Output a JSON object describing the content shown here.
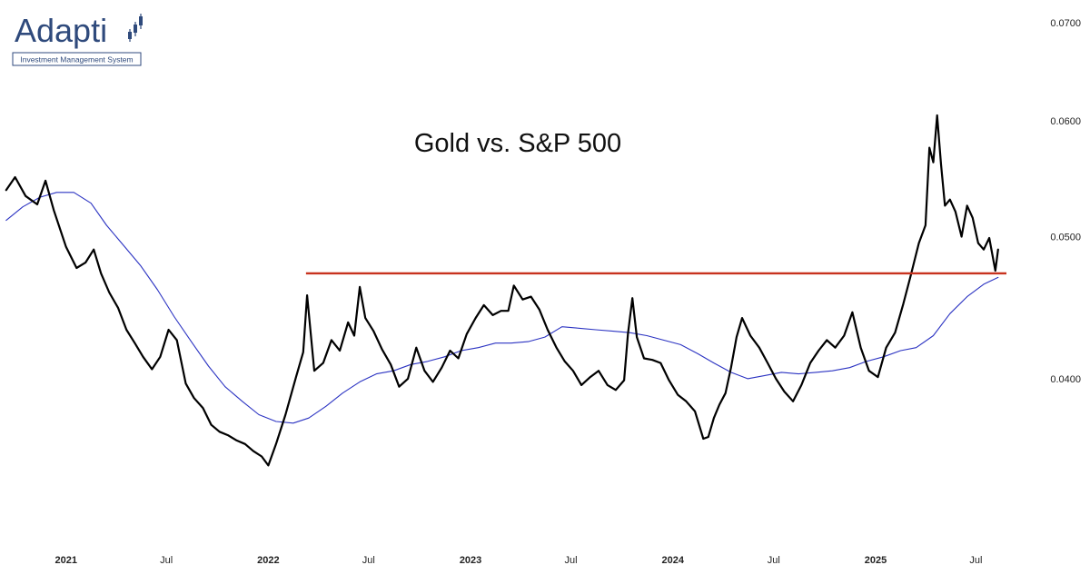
{
  "logo": {
    "name": "Adapti",
    "tagline": "Investment Management System",
    "color": "#2f4a7c"
  },
  "chart_data": {
    "type": "line",
    "title": "Gold vs. S&P 500",
    "xlabel": "",
    "ylabel": "",
    "x_ticks": [
      "2021",
      "Jul",
      "2022",
      "Jul",
      "2023",
      "Jul",
      "2024",
      "Jul",
      "2025",
      "Jul"
    ],
    "x_tick_dates": [
      "2021-01-01",
      "2021-07-01",
      "2022-01-01",
      "2022-07-01",
      "2023-01-01",
      "2023-07-01",
      "2024-01-01",
      "2024-07-01",
      "2025-01-01",
      "2025-07-01"
    ],
    "y_ticks": [
      "0.0700",
      "0.0600",
      "0.0500",
      "0.0400"
    ],
    "y_tick_values": [
      0.07,
      0.06,
      0.05,
      0.04
    ],
    "y_axis_position": "right",
    "grid": false,
    "xlim": [
      "2020-09-12",
      "2025-08-25"
    ],
    "ylim": [
      0.0308,
      0.0717
    ],
    "y_scale": "log",
    "series": [
      {
        "color": "#000000",
        "points": [
          [
            "2020-09-15",
            0.0538
          ],
          [
            "2020-10-01",
            0.0549
          ],
          [
            "2020-10-20",
            0.0533
          ],
          [
            "2020-11-10",
            0.0526
          ],
          [
            "2020-11-25",
            0.0546
          ],
          [
            "2020-12-10",
            0.0521
          ],
          [
            "2021-01-01",
            0.0492
          ],
          [
            "2021-01-20",
            0.0476
          ],
          [
            "2021-02-05",
            0.048
          ],
          [
            "2021-02-20",
            0.049
          ],
          [
            "2021-03-05",
            0.0472
          ],
          [
            "2021-03-20",
            0.0458
          ],
          [
            "2021-04-05",
            0.0447
          ],
          [
            "2021-04-20",
            0.0432
          ],
          [
            "2021-05-05",
            0.0423
          ],
          [
            "2021-05-20",
            0.0414
          ],
          [
            "2021-06-05",
            0.0406
          ],
          [
            "2021-06-20",
            0.0414
          ],
          [
            "2021-07-05",
            0.0432
          ],
          [
            "2021-07-20",
            0.0425
          ],
          [
            "2021-08-05",
            0.0397
          ],
          [
            "2021-08-20",
            0.0388
          ],
          [
            "2021-09-05",
            0.0382
          ],
          [
            "2021-09-20",
            0.0372
          ],
          [
            "2021-10-05",
            0.0368
          ],
          [
            "2021-10-20",
            0.0366
          ],
          [
            "2021-11-05",
            0.0363
          ],
          [
            "2021-11-20",
            0.0361
          ],
          [
            "2021-12-05",
            0.0357
          ],
          [
            "2021-12-20",
            0.0354
          ],
          [
            "2022-01-01",
            0.0349
          ],
          [
            "2022-01-15",
            0.0361
          ],
          [
            "2022-02-01",
            0.0378
          ],
          [
            "2022-02-20",
            0.0401
          ],
          [
            "2022-03-05",
            0.0417
          ],
          [
            "2022-03-12",
            0.0456
          ],
          [
            "2022-03-25",
            0.0405
          ],
          [
            "2022-04-10",
            0.041
          ],
          [
            "2022-04-25",
            0.0425
          ],
          [
            "2022-05-10",
            0.0418
          ],
          [
            "2022-05-25",
            0.0437
          ],
          [
            "2022-06-05",
            0.0428
          ],
          [
            "2022-06-15",
            0.0462
          ],
          [
            "2022-06-25",
            0.044
          ],
          [
            "2022-07-10",
            0.0431
          ],
          [
            "2022-07-25",
            0.0419
          ],
          [
            "2022-08-10",
            0.0409
          ],
          [
            "2022-08-25",
            0.0395
          ],
          [
            "2022-09-10",
            0.04
          ],
          [
            "2022-09-25",
            0.042
          ],
          [
            "2022-10-10",
            0.0405
          ],
          [
            "2022-10-25",
            0.0398
          ],
          [
            "2022-11-10",
            0.0407
          ],
          [
            "2022-11-25",
            0.0418
          ],
          [
            "2022-12-10",
            0.0413
          ],
          [
            "2022-12-25",
            0.0429
          ],
          [
            "2023-01-10",
            0.044
          ],
          [
            "2023-01-25",
            0.0449
          ],
          [
            "2023-02-10",
            0.0442
          ],
          [
            "2023-02-25",
            0.0445
          ],
          [
            "2023-03-10",
            0.0445
          ],
          [
            "2023-03-20",
            0.0463
          ],
          [
            "2023-04-05",
            0.0453
          ],
          [
            "2023-04-20",
            0.0455
          ],
          [
            "2023-05-05",
            0.0446
          ],
          [
            "2023-05-20",
            0.0432
          ],
          [
            "2023-06-05",
            0.042
          ],
          [
            "2023-06-20",
            0.0411
          ],
          [
            "2023-07-05",
            0.0405
          ],
          [
            "2023-07-20",
            0.0396
          ],
          [
            "2023-08-05",
            0.0401
          ],
          [
            "2023-08-20",
            0.0405
          ],
          [
            "2023-09-05",
            0.0396
          ],
          [
            "2023-09-20",
            0.0393
          ],
          [
            "2023-10-05",
            0.0399
          ],
          [
            "2023-10-12",
            0.0429
          ],
          [
            "2023-10-20",
            0.0454
          ],
          [
            "2023-10-28",
            0.0427
          ],
          [
            "2023-11-10",
            0.0413
          ],
          [
            "2023-11-25",
            0.0412
          ],
          [
            "2023-12-10",
            0.041
          ],
          [
            "2023-12-25",
            0.0399
          ],
          [
            "2024-01-10",
            0.039
          ],
          [
            "2024-01-25",
            0.0386
          ],
          [
            "2024-02-10",
            0.038
          ],
          [
            "2024-02-25",
            0.0364
          ],
          [
            "2024-03-05",
            0.0365
          ],
          [
            "2024-03-15",
            0.0376
          ],
          [
            "2024-03-25",
            0.0384
          ],
          [
            "2024-04-05",
            0.0391
          ],
          [
            "2024-04-15",
            0.0407
          ],
          [
            "2024-04-25",
            0.0427
          ],
          [
            "2024-05-05",
            0.044
          ],
          [
            "2024-05-20",
            0.0428
          ],
          [
            "2024-06-05",
            0.042
          ],
          [
            "2024-06-20",
            0.041
          ],
          [
            "2024-07-05",
            0.04
          ],
          [
            "2024-07-20",
            0.0392
          ],
          [
            "2024-08-05",
            0.0386
          ],
          [
            "2024-08-20",
            0.0396
          ],
          [
            "2024-09-05",
            0.041
          ],
          [
            "2024-09-20",
            0.0418
          ],
          [
            "2024-10-05",
            0.0425
          ],
          [
            "2024-10-20",
            0.042
          ],
          [
            "2024-11-05",
            0.0428
          ],
          [
            "2024-11-20",
            0.0444
          ],
          [
            "2024-12-05",
            0.042
          ],
          [
            "2024-12-20",
            0.0405
          ],
          [
            "2025-01-05",
            0.0401
          ],
          [
            "2025-01-20",
            0.042
          ],
          [
            "2025-02-05",
            0.043
          ],
          [
            "2025-02-20",
            0.045
          ],
          [
            "2025-03-05",
            0.047
          ],
          [
            "2025-03-20",
            0.0495
          ],
          [
            "2025-04-01",
            0.0509
          ],
          [
            "2025-04-08",
            0.0575
          ],
          [
            "2025-04-15",
            0.0562
          ],
          [
            "2025-04-22",
            0.0605
          ],
          [
            "2025-04-29",
            0.056
          ],
          [
            "2025-05-06",
            0.0525
          ],
          [
            "2025-05-15",
            0.053
          ],
          [
            "2025-05-25",
            0.052
          ],
          [
            "2025-06-05",
            0.05
          ],
          [
            "2025-06-15",
            0.0525
          ],
          [
            "2025-06-25",
            0.0515
          ],
          [
            "2025-07-05",
            0.0495
          ],
          [
            "2025-07-15",
            0.049
          ],
          [
            "2025-07-25",
            0.0499
          ],
          [
            "2025-08-05",
            0.0474
          ],
          [
            "2025-08-10",
            0.049
          ]
        ]
      },
      {
        "color": "#2b33c2",
        "points": [
          [
            "2020-09-15",
            0.0513
          ],
          [
            "2020-10-15",
            0.0524
          ],
          [
            "2020-11-15",
            0.0532
          ],
          [
            "2020-12-15",
            0.0536
          ],
          [
            "2021-01-15",
            0.0536
          ],
          [
            "2021-02-15",
            0.0527
          ],
          [
            "2021-03-15",
            0.0509
          ],
          [
            "2021-04-15",
            0.0493
          ],
          [
            "2021-05-15",
            0.0478
          ],
          [
            "2021-06-15",
            0.046
          ],
          [
            "2021-07-15",
            0.0441
          ],
          [
            "2021-08-15",
            0.0424
          ],
          [
            "2021-09-15",
            0.0408
          ],
          [
            "2021-10-15",
            0.0395
          ],
          [
            "2021-11-15",
            0.0386
          ],
          [
            "2021-12-15",
            0.0378
          ],
          [
            "2022-01-15",
            0.0374
          ],
          [
            "2022-02-15",
            0.0373
          ],
          [
            "2022-03-15",
            0.0376
          ],
          [
            "2022-04-15",
            0.0383
          ],
          [
            "2022-05-15",
            0.0391
          ],
          [
            "2022-06-15",
            0.0398
          ],
          [
            "2022-07-15",
            0.0403
          ],
          [
            "2022-08-15",
            0.0405
          ],
          [
            "2022-09-15",
            0.0409
          ],
          [
            "2022-10-15",
            0.0411
          ],
          [
            "2022-11-15",
            0.0414
          ],
          [
            "2022-12-15",
            0.0418
          ],
          [
            "2023-01-15",
            0.042
          ],
          [
            "2023-02-15",
            0.0423
          ],
          [
            "2023-03-15",
            0.0423
          ],
          [
            "2023-04-15",
            0.0424
          ],
          [
            "2023-05-15",
            0.0427
          ],
          [
            "2023-06-15",
            0.0434
          ],
          [
            "2023-07-15",
            0.0433
          ],
          [
            "2023-08-15",
            0.0432
          ],
          [
            "2023-09-15",
            0.0431
          ],
          [
            "2023-10-15",
            0.043
          ],
          [
            "2023-11-15",
            0.0428
          ],
          [
            "2023-12-15",
            0.0425
          ],
          [
            "2024-01-15",
            0.0422
          ],
          [
            "2024-02-15",
            0.0416
          ],
          [
            "2024-03-15",
            0.041
          ],
          [
            "2024-04-15",
            0.0404
          ],
          [
            "2024-05-15",
            0.04
          ],
          [
            "2024-06-15",
            0.0402
          ],
          [
            "2024-07-15",
            0.0404
          ],
          [
            "2024-08-15",
            0.0403
          ],
          [
            "2024-09-15",
            0.0404
          ],
          [
            "2024-10-15",
            0.0405
          ],
          [
            "2024-11-15",
            0.0407
          ],
          [
            "2024-12-15",
            0.0411
          ],
          [
            "2025-01-15",
            0.0414
          ],
          [
            "2025-02-15",
            0.0418
          ],
          [
            "2025-03-15",
            0.042
          ],
          [
            "2025-04-15",
            0.0428
          ],
          [
            "2025-05-15",
            0.0443
          ],
          [
            "2025-06-15",
            0.0455
          ],
          [
            "2025-07-15",
            0.0464
          ],
          [
            "2025-08-10",
            0.0469
          ]
        ]
      }
    ],
    "annotations": [
      {
        "type": "horizontal-line",
        "color": "#c8321e",
        "y": 0.0472,
        "x_start": "2022-03-10",
        "x_end": "2025-08-25"
      }
    ]
  }
}
